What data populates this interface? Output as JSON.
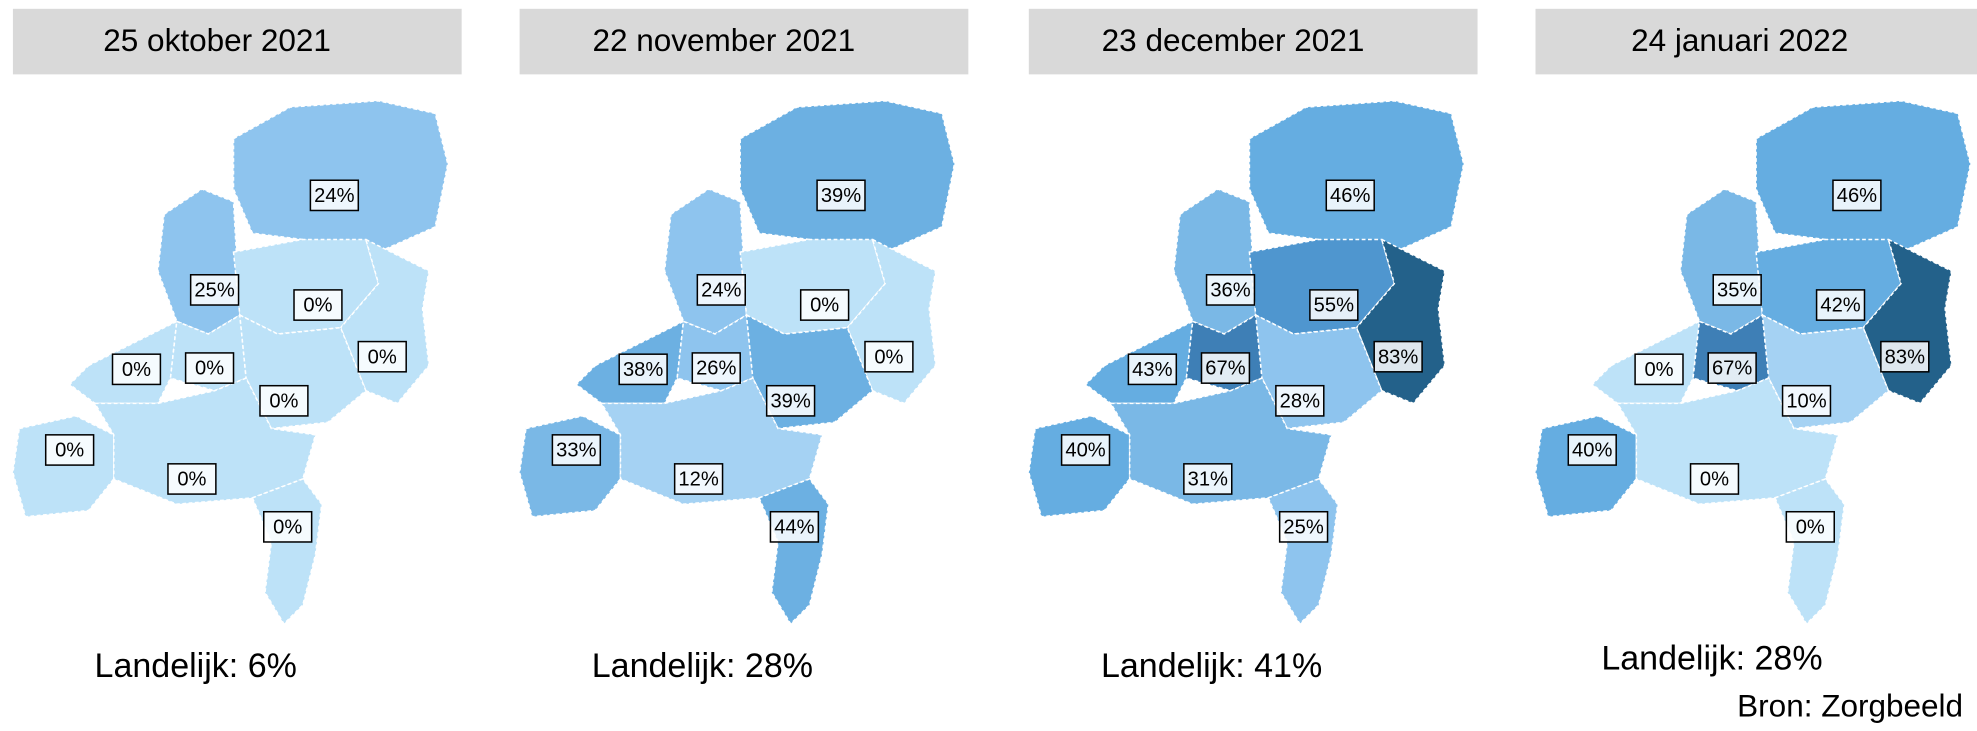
{
  "panels": [
    {
      "title": "25 oktober 2021",
      "national": "Landelijk: 6%",
      "regions": [
        {
          "label": "24%",
          "color": "#8ec4ee"
        },
        {
          "label": "25%",
          "color": "#8ec4ee"
        },
        {
          "label": "0%",
          "color": "#bde2f8"
        },
        {
          "label": "0%",
          "color": "#bde2f8"
        },
        {
          "label": "0%",
          "color": "#bde2f8"
        },
        {
          "label": "0%",
          "color": "#bde2f8"
        },
        {
          "label": "0%",
          "color": "#bde2f8"
        },
        {
          "label": "0%",
          "color": "#bde2f8"
        },
        {
          "label": "0%",
          "color": "#bde2f8"
        },
        {
          "label": "0%",
          "color": "#bde2f8"
        }
      ]
    },
    {
      "title": "22 november 2021",
      "national": "Landelijk: 28%",
      "regions": [
        {
          "label": "39%",
          "color": "#6cb0e2"
        },
        {
          "label": "24%",
          "color": "#8ec4ee"
        },
        {
          "label": "0%",
          "color": "#bde2f8"
        },
        {
          "label": "0%",
          "color": "#bde2f8"
        },
        {
          "label": "38%",
          "color": "#6cb0e2"
        },
        {
          "label": "26%",
          "color": "#8ec4ee"
        },
        {
          "label": "39%",
          "color": "#6cb0e2"
        },
        {
          "label": "33%",
          "color": "#7ab8e6"
        },
        {
          "label": "12%",
          "color": "#a5d2f3"
        },
        {
          "label": "44%",
          "color": "#6cb0e2"
        }
      ]
    },
    {
      "title": "23 december 2021",
      "national": "Landelijk: 41%",
      "regions": [
        {
          "label": "46%",
          "color": "#65ade1"
        },
        {
          "label": "36%",
          "color": "#7ab8e6"
        },
        {
          "label": "55%",
          "color": "#4f96cf"
        },
        {
          "label": "83%",
          "color": "#23618a"
        },
        {
          "label": "43%",
          "color": "#65ade1"
        },
        {
          "label": "67%",
          "color": "#3e7fb6"
        },
        {
          "label": "28%",
          "color": "#8ec4ee"
        },
        {
          "label": "40%",
          "color": "#65ade1"
        },
        {
          "label": "31%",
          "color": "#7ab8e6"
        },
        {
          "label": "25%",
          "color": "#8ec4ee"
        }
      ]
    },
    {
      "title": "24 januari 2022",
      "national": "Landelijk: 28%",
      "regions": [
        {
          "label": "46%",
          "color": "#65ade1"
        },
        {
          "label": "35%",
          "color": "#7ab8e6"
        },
        {
          "label": "42%",
          "color": "#65ade1"
        },
        {
          "label": "83%",
          "color": "#23618a"
        },
        {
          "label": "0%",
          "color": "#bde2f8"
        },
        {
          "label": "67%",
          "color": "#3e7fb6"
        },
        {
          "label": "10%",
          "color": "#a5d2f3"
        },
        {
          "label": "40%",
          "color": "#65ade1"
        },
        {
          "label": "0%",
          "color": "#bde2f8"
        },
        {
          "label": "0%",
          "color": "#bde2f8"
        }
      ]
    }
  ],
  "source": "Bron: Zorgbeeld"
}
